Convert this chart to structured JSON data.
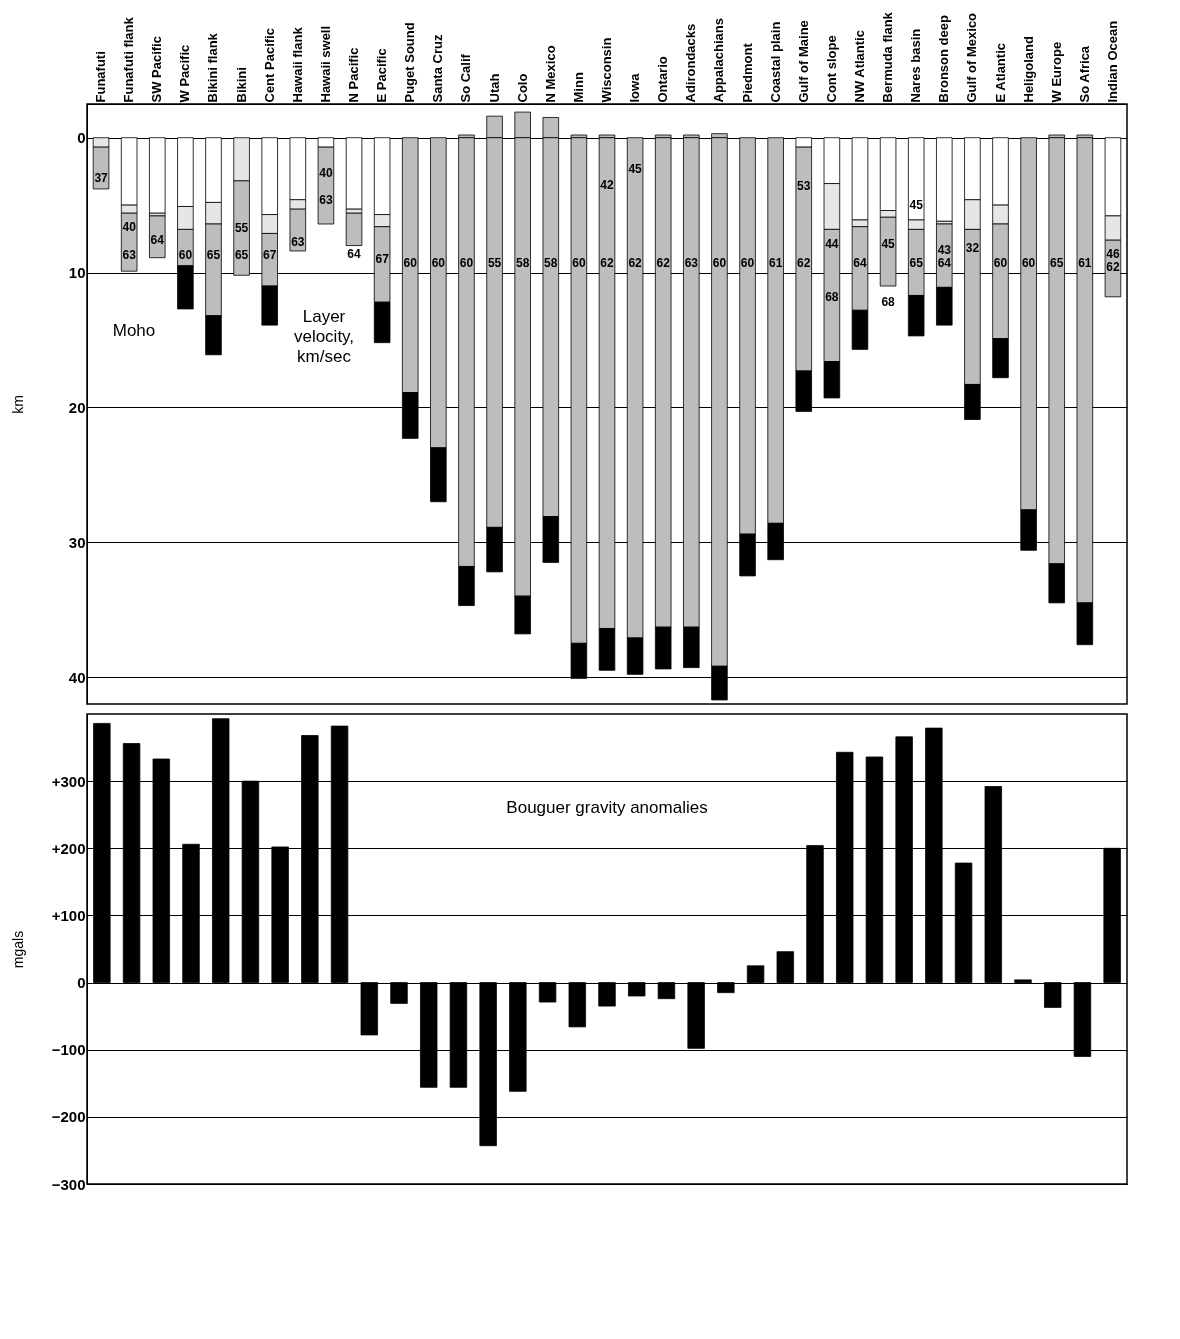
{
  "chart_data": [
    {
      "type": "bar",
      "ylabel": "km",
      "stacked": true,
      "grid": "y",
      "categories": [
        "Funafuti",
        "Funafuti flank",
        "SW Pacific",
        "W Pacific",
        "Bikini flank",
        "Bikini",
        "Cent Pacific",
        "Hawaii flank",
        "Hawaii swell",
        "N Pacific",
        "E Pacific",
        "Puget Sound",
        "Santa Cruz",
        "So Calif",
        "Utah",
        "Colo",
        "N Mexico",
        "Minn",
        "Wisconsin",
        "Iowa",
        "Ontario",
        "Adirondacks",
        "Appalachians",
        "Piedmont",
        "Coastal plain",
        "Gulf of Maine",
        "Cont slope",
        "NW Atlantic",
        "Bermuda flank",
        "Nares basin",
        "Bronson deep",
        "Gulf of Mexico",
        "E Atlantic",
        "Heligoland",
        "W Europe",
        "So Africa",
        "Indian Ocean"
      ],
      "series": [
        {
          "color": "#bdbdbd",
          "values": [
            null,
            null,
            null,
            null,
            null,
            null,
            null,
            null,
            null,
            null,
            null,
            null,
            null,
            -0.2,
            -1.6,
            -1.9,
            -1.5,
            -0.2,
            -0.2,
            null,
            -0.2,
            -0.2,
            -0.3,
            null,
            null,
            null,
            null,
            null,
            null,
            null,
            null,
            null,
            null,
            null,
            -0.2,
            -0.2,
            null
          ]
        },
        {
          "color": "#ffffff",
          "values": [
            null,
            5.0,
            5.6,
            5.1,
            4.8,
            null,
            5.7,
            4.6,
            0.7,
            5.3,
            5.7,
            null,
            null,
            null,
            null,
            null,
            null,
            null,
            null,
            null,
            null,
            null,
            null,
            null,
            null,
            0.7,
            3.4,
            6.1,
            5.4,
            6.1,
            6.2,
            4.6,
            5.0,
            null,
            null,
            null,
            5.8
          ]
        },
        {
          "color": "#e6e6e6",
          "values": [
            0.7,
            0.6,
            0.2,
            1.7,
            1.6,
            3.2,
            1.4,
            0.7,
            null,
            0.3,
            0.9,
            null,
            null,
            null,
            null,
            null,
            null,
            null,
            null,
            null,
            null,
            null,
            null,
            null,
            null,
            null,
            3.4,
            0.5,
            0.5,
            0.7,
            0.2,
            2.2,
            1.4,
            null,
            null,
            null,
            1.8
          ]
        },
        {
          "color": "#bdbdbd",
          "values": [
            3.1,
            4.3,
            3.1,
            2.7,
            6.8,
            7.0,
            3.9,
            3.1,
            5.7,
            2.4,
            5.6,
            18.9,
            23.0,
            31.8,
            28.9,
            34.0,
            28.1,
            37.5,
            36.4,
            37.1,
            36.3,
            36.3,
            39.2,
            29.4,
            28.6,
            16.6,
            9.8,
            6.2,
            5.1,
            4.9,
            4.7,
            11.5,
            8.5,
            27.6,
            31.6,
            34.5,
            4.2
          ]
        },
        {
          "color": "#000000",
          "values": [
            null,
            null,
            null,
            3.2,
            2.9,
            null,
            2.9,
            null,
            null,
            null,
            3.0,
            3.4,
            4.0,
            2.9,
            3.3,
            2.8,
            3.4,
            2.6,
            3.1,
            2.7,
            3.1,
            3.0,
            2.5,
            3.1,
            2.7,
            3.0,
            2.7,
            2.9,
            null,
            3.0,
            2.8,
            2.6,
            2.9,
            3.0,
            2.9,
            3.1,
            null
          ]
        }
      ],
      "ylim": [
        42,
        -2.5
      ],
      "yticks": [
        0,
        10,
        20,
        30,
        40
      ],
      "annotations": [
        "37",
        "40",
        "63",
        "64",
        "60",
        "65",
        "55",
        "65",
        "67",
        "63",
        "40",
        "63",
        "64",
        "67",
        "60",
        "60",
        "60",
        "55",
        "58",
        "58",
        "60",
        "42",
        "62",
        "45",
        "62",
        "62",
        "63",
        "60",
        "60",
        "61",
        "53",
        "62",
        "44",
        "68",
        "64",
        "45",
        "68",
        "45",
        "65",
        "43",
        "64",
        "32",
        "60",
        "60",
        "65",
        "61",
        "46",
        "62",
        "Moho",
        "Layer velocity, km/sec"
      ]
    },
    {
      "type": "bar",
      "title": "Bouguer gravity anomalies",
      "ylabel": "mgals",
      "grid": "y",
      "tick_labels": "y",
      "categories": [
        null,
        null,
        null,
        null,
        null,
        null,
        null,
        null,
        null,
        null,
        null,
        null,
        null,
        null,
        null,
        null,
        null,
        null,
        null,
        null,
        null,
        null,
        null,
        null,
        null,
        null,
        null,
        null,
        null,
        null,
        null,
        null,
        null,
        null,
        null
      ],
      "values": [
        386,
        356,
        333,
        206,
        393,
        300,
        202,
        368,
        382,
        -78,
        -31,
        -156,
        -156,
        -243,
        -162,
        -29,
        -66,
        -35,
        -20,
        -24,
        -98,
        -15,
        25,
        46,
        204,
        343,
        336,
        366,
        379,
        178,
        292,
        4,
        -37,
        -110,
        200
      ],
      "color": "#000000",
      "ylim": [
        -300,
        400
      ],
      "yticks": [
        {
          "value": -300,
          "label": "−300"
        },
        {
          "value": -200,
          "label": "−200"
        },
        {
          "value": -100,
          "label": "−100"
        },
        0,
        {
          "value": 100,
          "label": "+100"
        },
        {
          "value": 200,
          "label": "+200"
        },
        {
          "value": 300,
          "label": "+300"
        }
      ]
    }
  ]
}
